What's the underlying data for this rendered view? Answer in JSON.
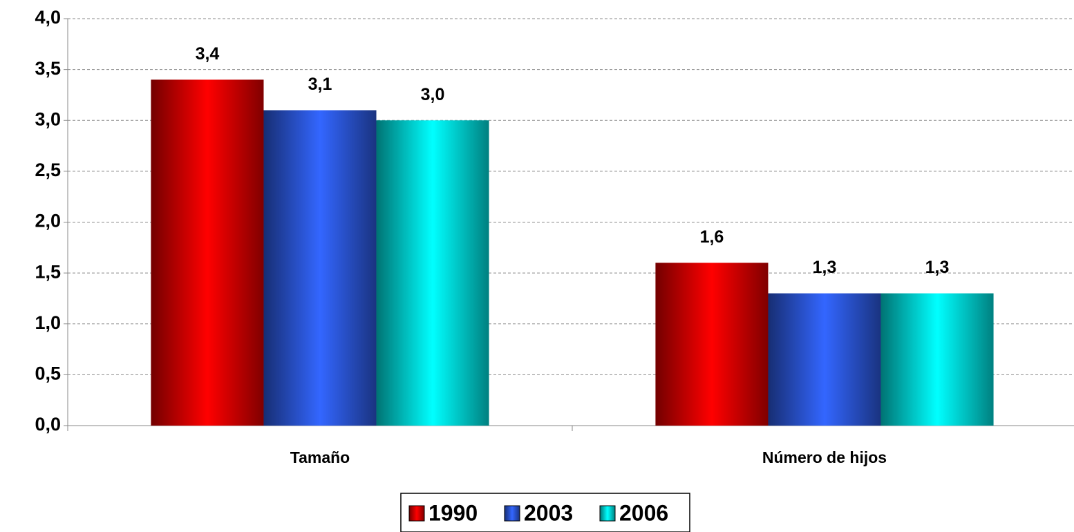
{
  "chart_data": {
    "type": "bar",
    "categories": [
      "Tamaño",
      "Número de hijos"
    ],
    "series": [
      {
        "name": "1990",
        "color": "#ff0000",
        "values": [
          3.4,
          1.6
        ],
        "value_labels": [
          "3,4",
          "1,6"
        ]
      },
      {
        "name": "2003",
        "color": "#3366ff",
        "values": [
          3.1,
          1.3
        ],
        "value_labels": [
          "3,1",
          "1,3"
        ]
      },
      {
        "name": "2006",
        "color": "#00ffff",
        "values": [
          3.0,
          1.3
        ],
        "value_labels": [
          "3,0",
          "1,3"
        ]
      }
    ],
    "ylim": [
      0,
      4
    ],
    "yticks": [
      {
        "value": 0,
        "label": "0,0"
      },
      {
        "value": 0.5,
        "label": "0,5"
      },
      {
        "value": 1,
        "label": "1,0"
      },
      {
        "value": 1.5,
        "label": "1,5"
      },
      {
        "value": 2,
        "label": "2,0"
      },
      {
        "value": 2.5,
        "label": "2,5"
      },
      {
        "value": 3,
        "label": "3,0"
      },
      {
        "value": 3.5,
        "label": "3,5"
      },
      {
        "value": 4,
        "label": "4,0"
      }
    ],
    "grid": true,
    "legend": "bottom"
  }
}
